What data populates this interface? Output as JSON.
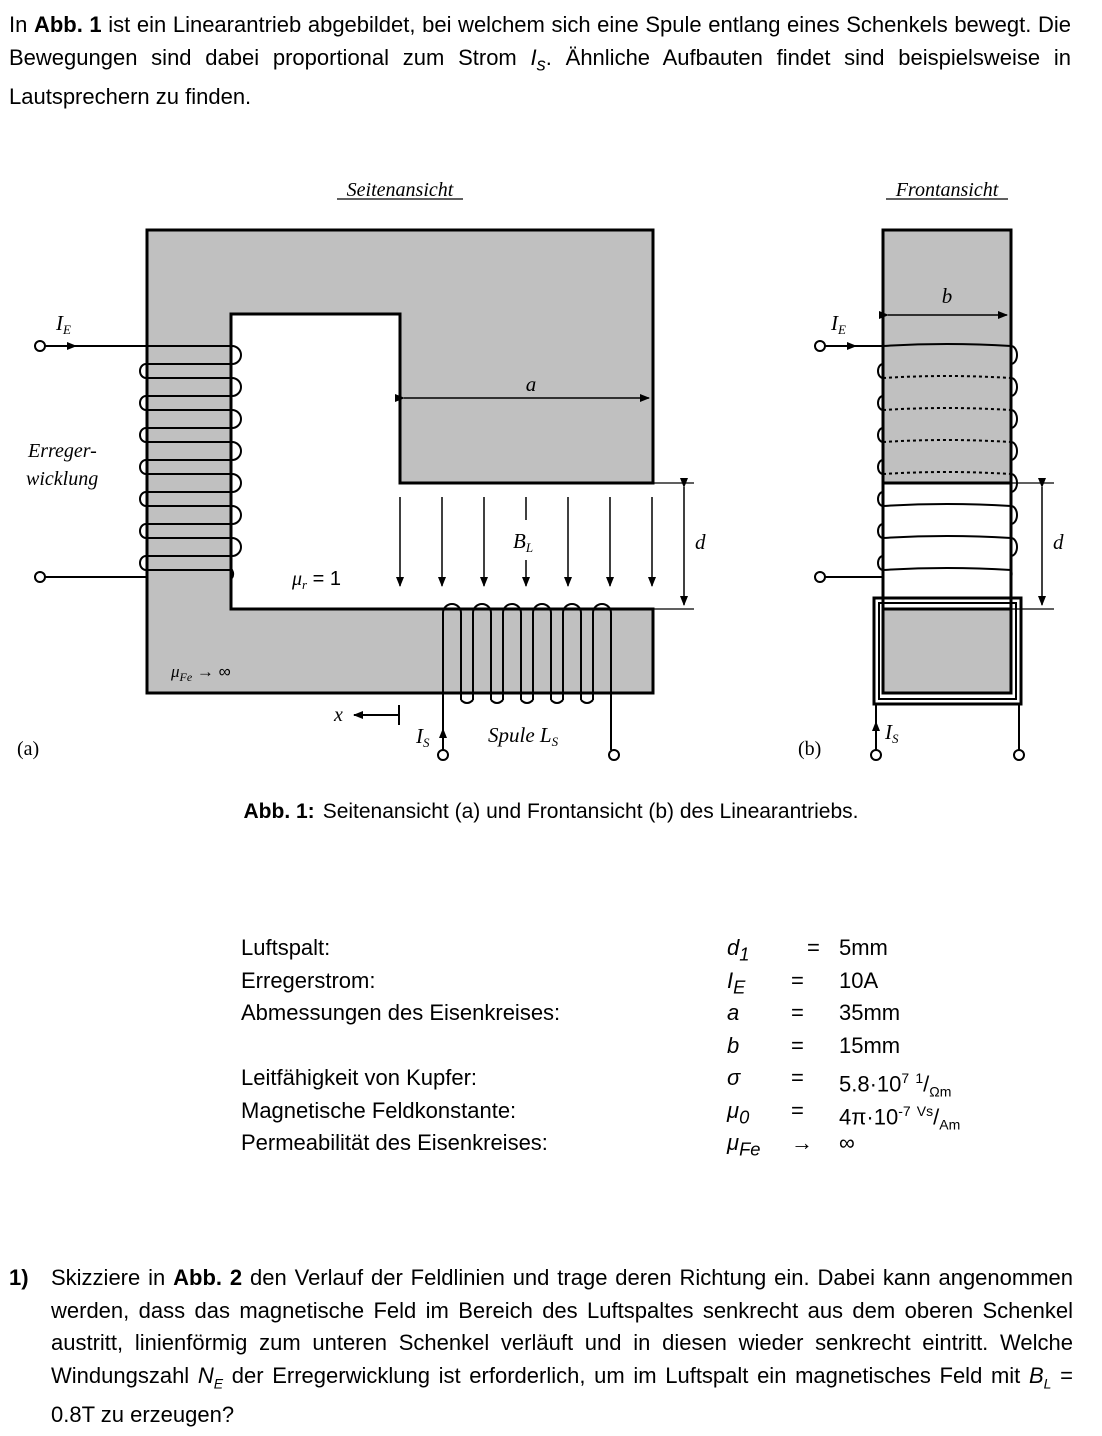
{
  "intro": {
    "t1": "In ",
    "b1": "Abb. 1",
    "t2": " ist ein Linearantrieb abgebildet, bei welchem sich eine Spule entlang eines Schenkels bewegt. Die Bewegungen sind dabei proportional zum Strom ",
    "sym": "I",
    "sub": "s",
    "t3": ". Ähnliche Aufbauten findet sind beispielsweise in Lautsprechern zu finden."
  },
  "figure": {
    "a": {
      "title": "Seitenansicht",
      "ie": "I",
      "ie_sub": "E",
      "winding_1": "Erreger-",
      "winding_2": "wicklung",
      "dim_a": "a",
      "bl": "B",
      "bl_sub": "L",
      "dim_d": "d",
      "mur": "μ",
      "mur_sub": "r",
      "mur_val": " = 1",
      "mufe": "μ",
      "mufe_sub": "Fe",
      "mufe_val": " → ∞",
      "x": "x",
      "is": "I",
      "is_sub": "S",
      "coil": "Spule L",
      "coil_sub": "S",
      "label": "(a)"
    },
    "b": {
      "title": "Frontansicht",
      "dim_b": "b",
      "ie": "I",
      "ie_sub": "E",
      "dim_d": "d",
      "is": "I",
      "is_sub": "S",
      "label": "(b)"
    }
  },
  "caption": {
    "label": "Abb. 1:",
    "text": "Seitenansicht (a) und Frontansicht (b) des Linearantriebs."
  },
  "params": [
    {
      "label": "Luftspalt:",
      "sym": "d",
      "sub": "1",
      "op": "=",
      "val": "5mm"
    },
    {
      "label": "Erregerstrom:",
      "sym": "I",
      "sub": "E",
      "op": "=",
      "val": "10A"
    },
    {
      "label": "Abmessungen des Eisenkreises:",
      "sym": "a",
      "sub": "",
      "op": "=",
      "val": "35mm"
    },
    {
      "label": "",
      "sym": "b",
      "sub": "",
      "op": "=",
      "val": "15mm"
    },
    {
      "label": "Leitfähigkeit von Kupfer:",
      "sym": "σ",
      "sub": "",
      "op": "=",
      "val": "5.8·10",
      "sup": "7",
      "unit_num": "1",
      "unit_den": "Ωm"
    },
    {
      "label": "Magnetische Feldkonstante:",
      "sym": "μ",
      "sub": "0",
      "op": "=",
      "val": "4π·10",
      "sup": "-7",
      "unit_num": "Vs",
      "unit_den": "Am"
    },
    {
      "label": "Permeabilität des Eisenkreises:",
      "sym": "μ",
      "sub": "Fe",
      "op": "→",
      "val": "∞"
    }
  ],
  "task": {
    "num": "1)",
    "t1": "Skizziere in ",
    "b1": "Abb. 2",
    "t2": " den Verlauf der Feldlinien und trage deren Richtung ein. Dabei kann angenommen werden, dass das magnetische Feld im Bereich des Luftspaltes senkrecht aus dem oberen Schenkel austritt, linienförmig zum unteren Schenkel verläuft und in diesen wieder senkrecht eintritt. Welche Windungszahl ",
    "s1": "N",
    "s1sub": "E",
    "t3": " der Erregerwicklung ist erforderlich, um im Luftspalt ein magnetisches Feld mit ",
    "s2": "B",
    "s2sub": "L",
    "t4": " = 0.8T zu erzeugen?"
  }
}
